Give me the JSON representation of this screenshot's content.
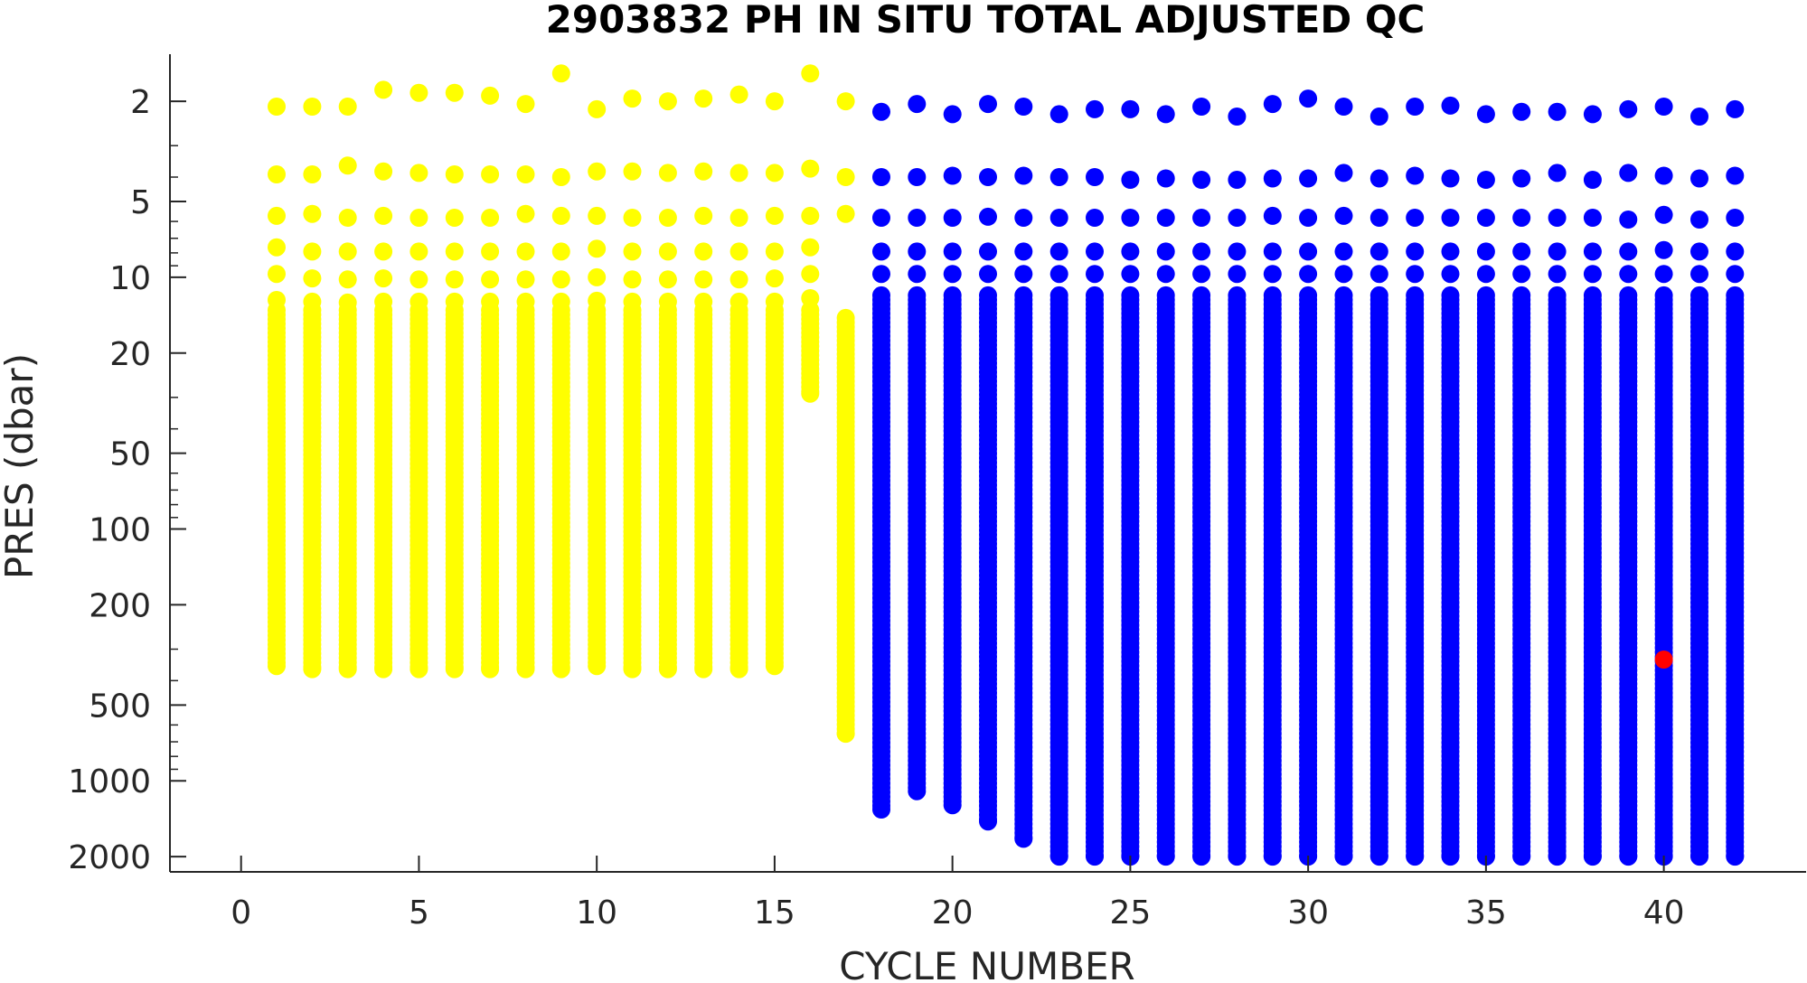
{
  "chart_data": {
    "type": "scatter",
    "title": "2903832  PH IN SITU TOTAL ADJUSTED QC",
    "xlabel": "CYCLE NUMBER",
    "ylabel": "PRES (dbar)",
    "xlim": [
      -2,
      44
    ],
    "ylim": [
      1.3,
      2300
    ],
    "y_scale": "log",
    "y_reversed": true,
    "grid": false,
    "x_ticks": [
      0,
      5,
      10,
      15,
      20,
      25,
      30,
      35,
      40
    ],
    "y_ticks": [
      2,
      5,
      10,
      20,
      50,
      100,
      200,
      500,
      1000,
      2000
    ],
    "series": [
      {
        "flag": "3",
        "color": "#ffff00",
        "profiles": [
          {
            "cycle": 1,
            "top": [
              2.1,
              3.9,
              5.7,
              7.6,
              9.7,
              12.3
            ],
            "continuous_from": 13.5,
            "max_pres": 350
          },
          {
            "cycle": 2,
            "top": [
              2.1,
              3.9,
              5.6,
              7.9,
              10.1,
              12.5
            ],
            "continuous_from": 13.5,
            "max_pres": 360
          },
          {
            "cycle": 3,
            "top": [
              2.1,
              3.6,
              5.8,
              7.9,
              10.2,
              12.6
            ],
            "continuous_from": 13.5,
            "max_pres": 360
          },
          {
            "cycle": 4,
            "top": [
              1.8,
              3.8,
              5.7,
              7.9,
              10.1,
              12.5
            ],
            "continuous_from": 13.5,
            "max_pres": 360
          },
          {
            "cycle": 5,
            "top": [
              1.85,
              3.85,
              5.8,
              7.9,
              10.2,
              12.5
            ],
            "continuous_from": 13.5,
            "max_pres": 360
          },
          {
            "cycle": 6,
            "top": [
              1.85,
              3.9,
              5.8,
              7.9,
              10.2,
              12.5
            ],
            "continuous_from": 13.5,
            "max_pres": 360
          },
          {
            "cycle": 7,
            "top": [
              1.9,
              3.9,
              5.8,
              7.9,
              10.2,
              12.5
            ],
            "continuous_from": 13.5,
            "max_pres": 360
          },
          {
            "cycle": 8,
            "top": [
              2.05,
              3.9,
              5.6,
              7.9,
              10.2,
              12.5
            ],
            "continuous_from": 13.5,
            "max_pres": 360
          },
          {
            "cycle": 9,
            "top": [
              1.55,
              4.0,
              5.7,
              7.9,
              10.2,
              12.5
            ],
            "continuous_from": 13.5,
            "max_pres": 360
          },
          {
            "cycle": 10,
            "top": [
              2.15,
              3.8,
              5.7,
              7.7,
              10.0,
              12.4
            ],
            "continuous_from": 13.5,
            "max_pres": 350
          },
          {
            "cycle": 11,
            "top": [
              1.95,
              3.8,
              5.8,
              7.9,
              10.2,
              12.5
            ],
            "continuous_from": 13.5,
            "max_pres": 360
          },
          {
            "cycle": 12,
            "top": [
              2.0,
              3.85,
              5.8,
              7.9,
              10.2,
              12.5
            ],
            "continuous_from": 13.5,
            "max_pres": 360
          },
          {
            "cycle": 13,
            "top": [
              1.95,
              3.8,
              5.7,
              7.9,
              10.2,
              12.5
            ],
            "continuous_from": 13.5,
            "max_pres": 360
          },
          {
            "cycle": 14,
            "top": [
              1.88,
              3.85,
              5.8,
              7.9,
              10.2,
              12.5
            ],
            "continuous_from": 13.5,
            "max_pres": 360
          },
          {
            "cycle": 15,
            "top": [
              2.0,
              3.85,
              5.7,
              7.9,
              10.1,
              12.5
            ],
            "continuous_from": 13.5,
            "max_pres": 350
          },
          {
            "cycle": 16,
            "top": [
              1.55,
              3.7,
              5.7,
              7.6,
              9.7,
              12.1
            ],
            "continuous_from": 13.5,
            "max_pres": 29
          },
          {
            "cycle": 17,
            "top": [
              2.0,
              4.0,
              5.6
            ],
            "continuous_from": 14.5,
            "max_pres": 650
          }
        ]
      },
      {
        "flag": "1",
        "color": "#0000ff",
        "profiles": [
          {
            "cycle": 18,
            "top": [
              2.2,
              4.0,
              5.8,
              7.9,
              9.7
            ],
            "continuous_from": 11.8,
            "max_pres": 1300
          },
          {
            "cycle": 19,
            "top": [
              2.05,
              4.0,
              5.8,
              7.9,
              9.7
            ],
            "continuous_from": 11.8,
            "max_pres": 1100
          },
          {
            "cycle": 20,
            "top": [
              2.25,
              3.95,
              5.8,
              7.9,
              9.7
            ],
            "continuous_from": 11.8,
            "max_pres": 1250
          },
          {
            "cycle": 21,
            "top": [
              2.05,
              4.0,
              5.75,
              7.9,
              9.7
            ],
            "continuous_from": 11.8,
            "max_pres": 1450
          },
          {
            "cycle": 22,
            "top": [
              2.1,
              3.95,
              5.8,
              7.9,
              9.7
            ],
            "continuous_from": 11.8,
            "max_pres": 1700
          },
          {
            "cycle": 23,
            "top": [
              2.25,
              4.0,
              5.8,
              7.9,
              9.7
            ],
            "continuous_from": 11.8,
            "max_pres": 2000
          },
          {
            "cycle": 24,
            "top": [
              2.15,
              4.0,
              5.8,
              7.9,
              9.7
            ],
            "continuous_from": 11.8,
            "max_pres": 2000
          },
          {
            "cycle": 25,
            "top": [
              2.15,
              4.1,
              5.8,
              7.9,
              9.7
            ],
            "continuous_from": 11.8,
            "max_pres": 2000
          },
          {
            "cycle": 26,
            "top": [
              2.25,
              4.05,
              5.8,
              7.9,
              9.7
            ],
            "continuous_from": 11.8,
            "max_pres": 2000
          },
          {
            "cycle": 27,
            "top": [
              2.1,
              4.1,
              5.8,
              7.9,
              9.7
            ],
            "continuous_from": 11.8,
            "max_pres": 2000
          },
          {
            "cycle": 28,
            "top": [
              2.3,
              4.1,
              5.8,
              7.9,
              9.7
            ],
            "continuous_from": 11.8,
            "max_pres": 2000
          },
          {
            "cycle": 29,
            "top": [
              2.05,
              4.05,
              5.7,
              7.9,
              9.7
            ],
            "continuous_from": 11.8,
            "max_pres": 2000
          },
          {
            "cycle": 30,
            "top": [
              1.95,
              4.05,
              5.8,
              7.9,
              9.7
            ],
            "continuous_from": 11.8,
            "max_pres": 2000
          },
          {
            "cycle": 31,
            "top": [
              2.1,
              3.85,
              5.7,
              7.9,
              9.7
            ],
            "continuous_from": 11.8,
            "max_pres": 2000
          },
          {
            "cycle": 32,
            "top": [
              2.3,
              4.05,
              5.8,
              7.9,
              9.7
            ],
            "continuous_from": 11.8,
            "max_pres": 2000
          },
          {
            "cycle": 33,
            "top": [
              2.1,
              3.95,
              5.8,
              7.9,
              9.7
            ],
            "continuous_from": 11.8,
            "max_pres": 2000
          },
          {
            "cycle": 34,
            "top": [
              2.08,
              4.05,
              5.8,
              7.9,
              9.7
            ],
            "continuous_from": 11.8,
            "max_pres": 2000
          },
          {
            "cycle": 35,
            "top": [
              2.25,
              4.1,
              5.8,
              7.9,
              9.7
            ],
            "continuous_from": 11.8,
            "max_pres": 2000
          },
          {
            "cycle": 36,
            "top": [
              2.2,
              4.05,
              5.8,
              7.9,
              9.7
            ],
            "continuous_from": 11.8,
            "max_pres": 2000
          },
          {
            "cycle": 37,
            "top": [
              2.2,
              3.85,
              5.8,
              7.9,
              9.7
            ],
            "continuous_from": 11.8,
            "max_pres": 2000
          },
          {
            "cycle": 38,
            "top": [
              2.25,
              4.1,
              5.8,
              7.9,
              9.7
            ],
            "continuous_from": 11.8,
            "max_pres": 2000
          },
          {
            "cycle": 39,
            "top": [
              2.15,
              3.85,
              5.9,
              7.9,
              9.7
            ],
            "continuous_from": 11.8,
            "max_pres": 2000
          },
          {
            "cycle": 40,
            "top": [
              2.1,
              3.95,
              5.65,
              7.8,
              9.7
            ],
            "continuous_from": 11.8,
            "max_pres": 2000
          },
          {
            "cycle": 41,
            "top": [
              2.3,
              4.05,
              5.9,
              7.9,
              9.7
            ],
            "continuous_from": 11.8,
            "max_pres": 2000
          },
          {
            "cycle": 42,
            "top": [
              2.15,
              3.95,
              5.8,
              7.9,
              9.7
            ],
            "continuous_from": 11.8,
            "max_pres": 2000
          }
        ]
      },
      {
        "flag": "4",
        "color": "#ff0000",
        "points": [
          {
            "cycle": 40,
            "pres": 330
          }
        ]
      }
    ]
  }
}
